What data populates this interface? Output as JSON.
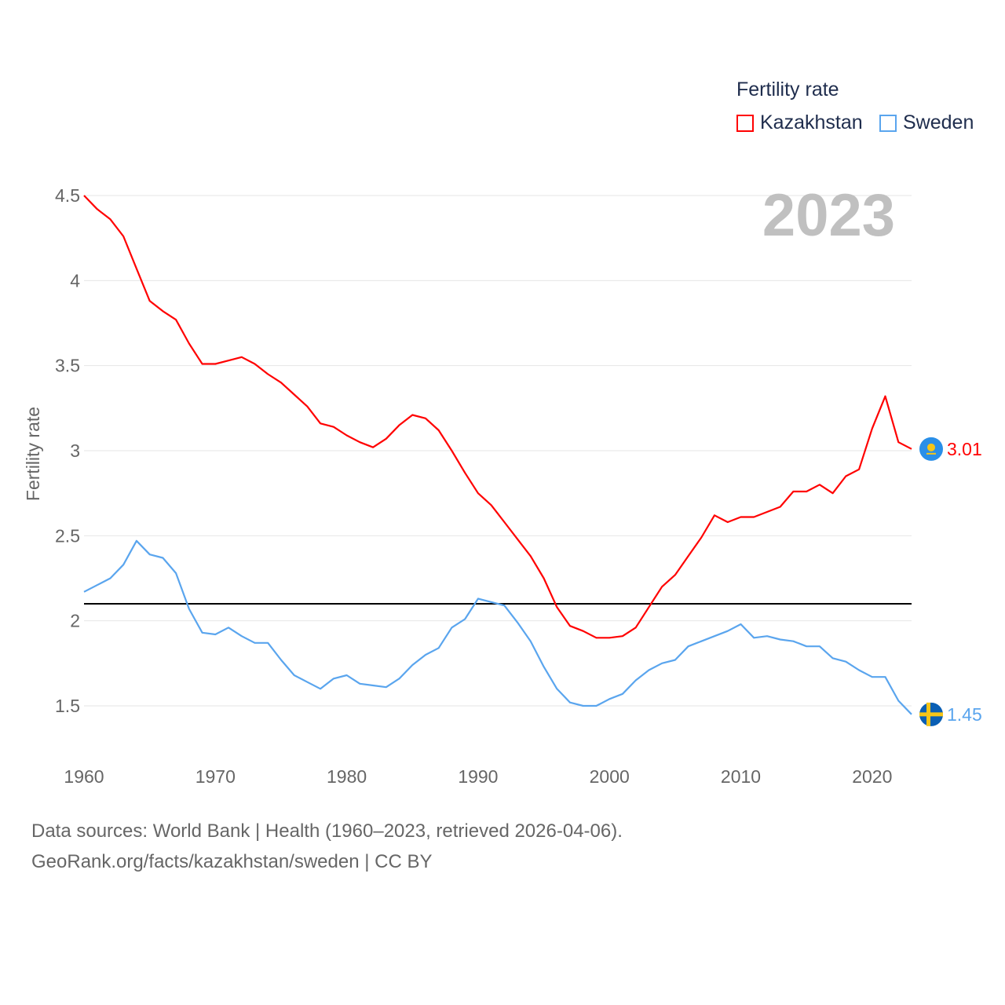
{
  "chart_data": {
    "type": "line",
    "title": "Fertility rate",
    "ylabel": "Fertility rate",
    "xlabel": "",
    "year_label": "2023",
    "xlim": [
      1960,
      2023
    ],
    "ylim": [
      1.5,
      4.5
    ],
    "x_ticks": [
      1960,
      1970,
      1980,
      1990,
      2000,
      2010,
      2020
    ],
    "y_ticks": [
      1.5,
      2,
      2.5,
      3,
      3.5,
      4,
      4.5
    ],
    "y_tick_labels": [
      "1.5",
      "2",
      "2.5",
      "3",
      "3.5",
      "4",
      "4.5"
    ],
    "grid": true,
    "legend_position": "top-right",
    "reference_line": 2.1,
    "x": [
      1960,
      1961,
      1962,
      1963,
      1964,
      1965,
      1966,
      1967,
      1968,
      1969,
      1970,
      1971,
      1972,
      1973,
      1974,
      1975,
      1976,
      1977,
      1978,
      1979,
      1980,
      1981,
      1982,
      1983,
      1984,
      1985,
      1986,
      1987,
      1988,
      1989,
      1990,
      1991,
      1992,
      1993,
      1994,
      1995,
      1996,
      1997,
      1998,
      1999,
      2000,
      2001,
      2002,
      2003,
      2004,
      2005,
      2006,
      2007,
      2008,
      2009,
      2010,
      2011,
      2012,
      2013,
      2014,
      2015,
      2016,
      2017,
      2018,
      2019,
      2020,
      2021,
      2022,
      2023
    ],
    "series": [
      {
        "name": "Kazakhstan",
        "color": "#ff0000",
        "end_label": "3.01",
        "values": [
          4.5,
          4.42,
          4.36,
          4.26,
          4.07,
          3.88,
          3.82,
          3.77,
          3.63,
          3.51,
          3.51,
          3.53,
          3.55,
          3.51,
          3.45,
          3.4,
          3.33,
          3.26,
          3.16,
          3.14,
          3.09,
          3.05,
          3.02,
          3.07,
          3.15,
          3.21,
          3.19,
          3.12,
          3.0,
          2.87,
          2.75,
          2.68,
          2.58,
          2.48,
          2.38,
          2.25,
          2.08,
          1.97,
          1.94,
          1.9,
          1.9,
          1.91,
          1.96,
          2.08,
          2.2,
          2.27,
          2.38,
          2.49,
          2.62,
          2.58,
          2.61,
          2.61,
          2.64,
          2.67,
          2.76,
          2.76,
          2.8,
          2.75,
          2.85,
          2.89,
          3.13,
          3.32,
          3.05,
          3.01
        ]
      },
      {
        "name": "Sweden",
        "color": "#5aa5ee",
        "end_label": "1.45",
        "values": [
          2.17,
          2.21,
          2.25,
          2.33,
          2.47,
          2.39,
          2.37,
          2.28,
          2.07,
          1.93,
          1.92,
          1.96,
          1.91,
          1.87,
          1.87,
          1.77,
          1.68,
          1.64,
          1.6,
          1.66,
          1.68,
          1.63,
          1.62,
          1.61,
          1.66,
          1.74,
          1.8,
          1.84,
          1.96,
          2.01,
          2.13,
          2.11,
          2.09,
          1.99,
          1.88,
          1.73,
          1.6,
          1.52,
          1.5,
          1.5,
          1.54,
          1.57,
          1.65,
          1.71,
          1.75,
          1.77,
          1.85,
          1.88,
          1.91,
          1.94,
          1.98,
          1.9,
          1.91,
          1.89,
          1.88,
          1.85,
          1.85,
          1.78,
          1.76,
          1.71,
          1.67,
          1.67,
          1.53,
          1.45
        ]
      }
    ]
  },
  "footer": {
    "sources": "Data sources: World Bank | Health (1960–2023, retrieved 2026-04-06).",
    "attribution": "GeoRank.org/facts/kazakhstan/sweden | CC BY"
  }
}
